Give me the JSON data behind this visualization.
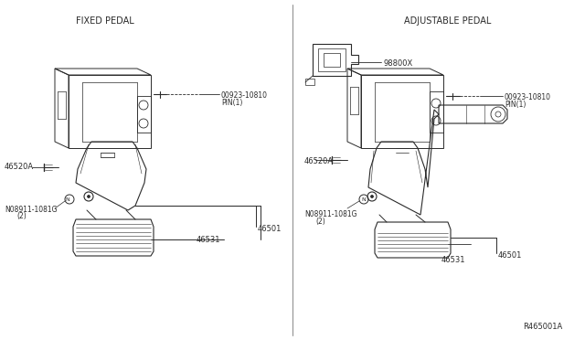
{
  "bg_color": "#ffffff",
  "line_color": "#2a2a2a",
  "text_color": "#2a2a2a",
  "left_label": "FIXED PEDAL",
  "right_label": "ADJUSTABLE PEDAL",
  "ref_number": "R465001A",
  "left_parts": {
    "part_00923": "00923-10810\nPIN(1)",
    "part_46520": "46520A",
    "part_08911": "N08911-1081G\n(2)",
    "part_46501": "46501",
    "part_46531": "46531"
  },
  "right_parts": {
    "part_98800": "98800X",
    "part_00923": "00923-10810\nPIN(1)",
    "part_46520": "46520A",
    "part_08911": "N08911-1081G\n(2)",
    "part_46501": "46501",
    "part_46531": "46531"
  }
}
